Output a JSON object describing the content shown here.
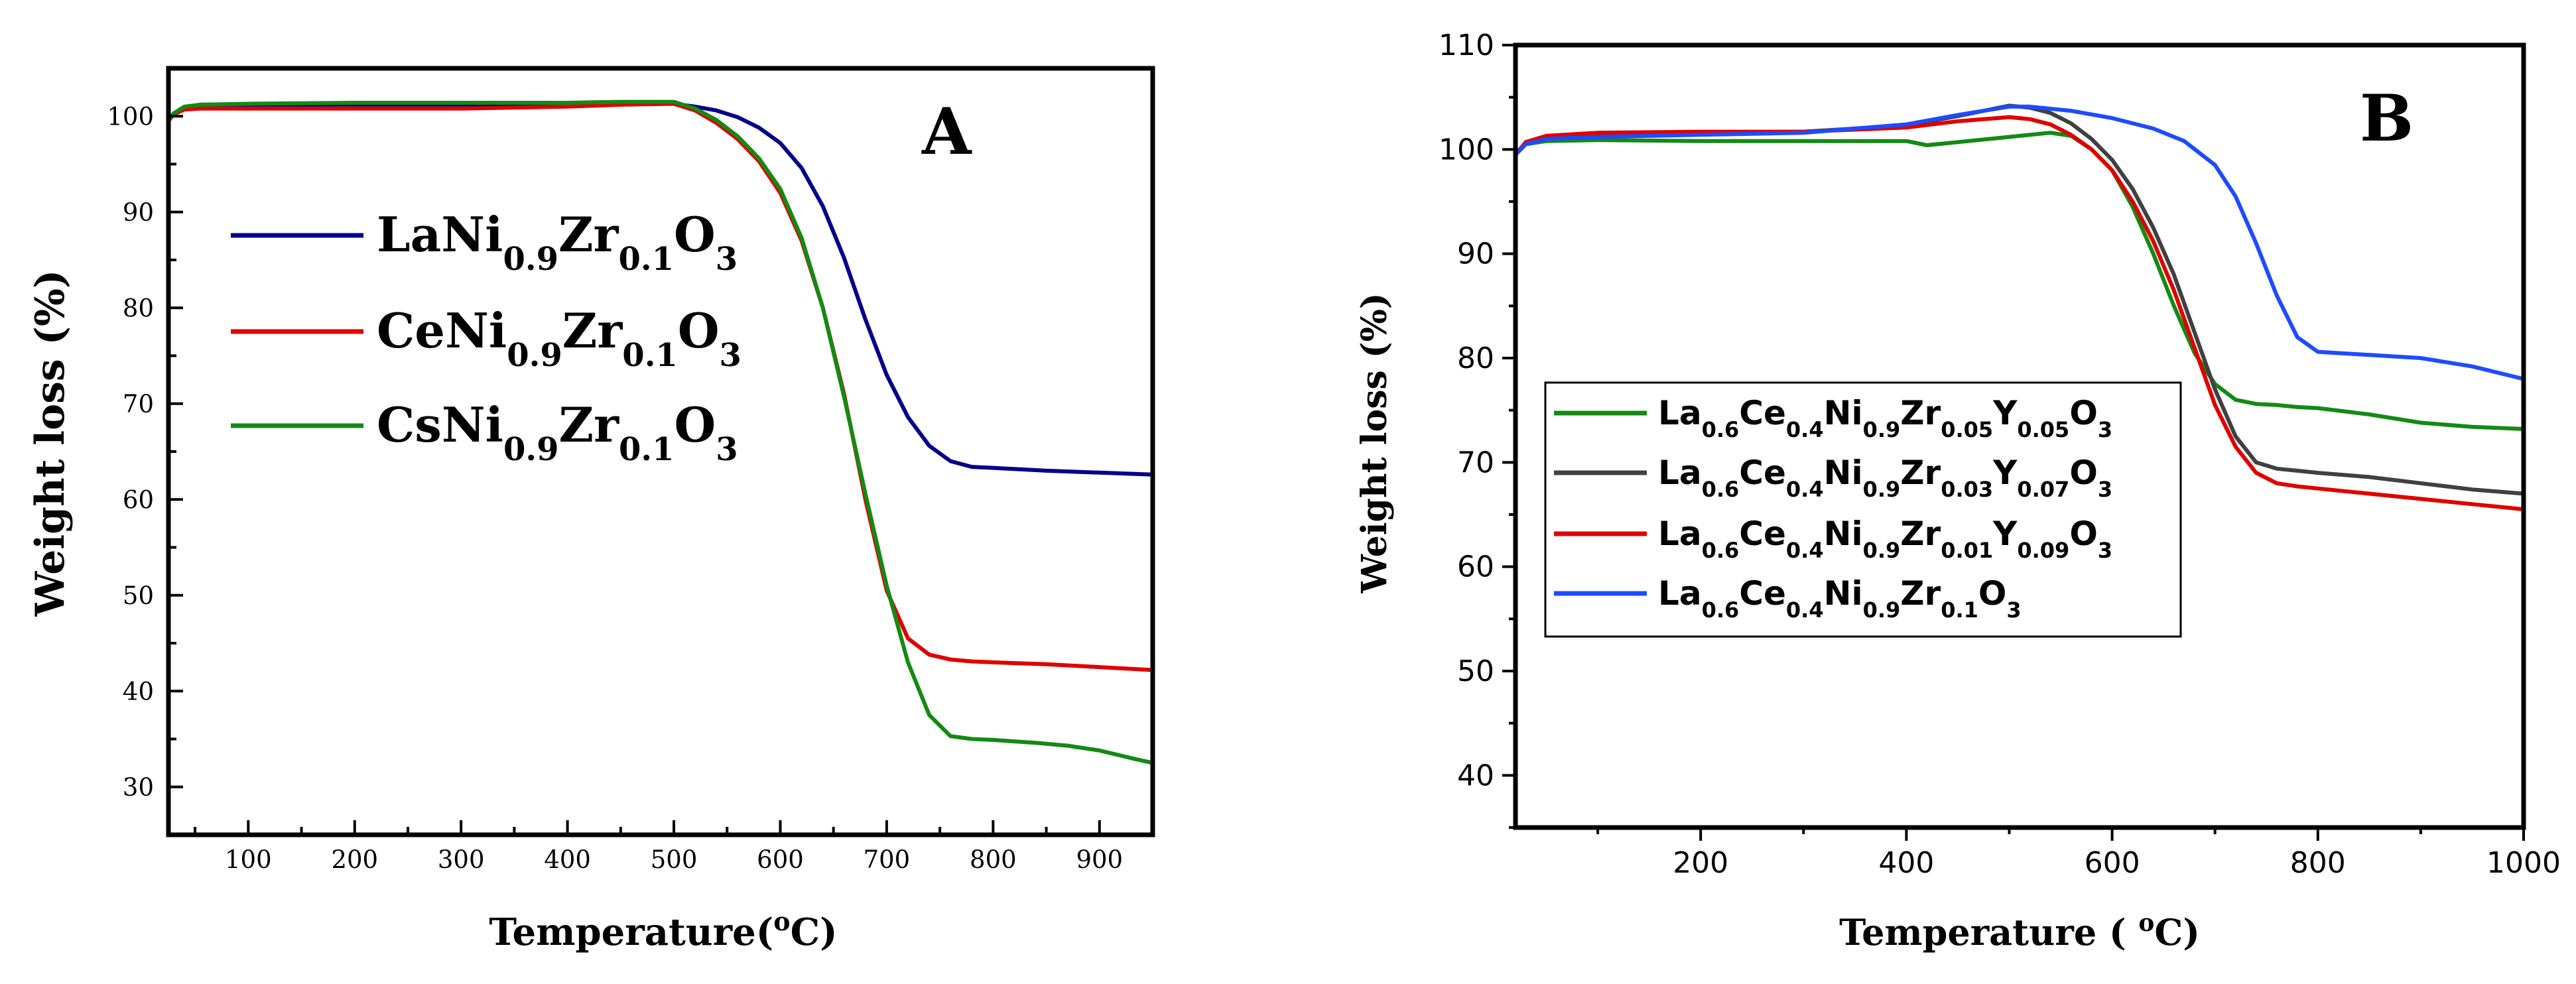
{
  "chart_data": [
    {
      "panel": "A",
      "type": "line",
      "title": "",
      "xlabel": "Temperature",
      "xlabel_unit": "(oC)",
      "ylabel": "Weight loss (%)",
      "xlim": [
        25,
        950
      ],
      "ylim": [
        25,
        105
      ],
      "xticks": [
        100,
        200,
        300,
        400,
        500,
        600,
        700,
        800,
        900
      ],
      "yticks": [
        30,
        40,
        50,
        60,
        70,
        80,
        90,
        100
      ],
      "grid": false,
      "legend_position": "upper-left",
      "series": [
        {
          "name": "LaNi0.9Zr0.1O3",
          "label_parts": [
            [
              "LaNi",
              ""
            ],
            [
              "0.9",
              "sub"
            ],
            [
              "Zr",
              ""
            ],
            [
              "0.1",
              "sub"
            ],
            [
              "O",
              ""
            ],
            [
              "3",
              "sub"
            ]
          ],
          "color": "#00008B",
          "x": [
            25,
            30,
            40,
            55,
            100,
            200,
            300,
            400,
            450,
            500,
            520,
            540,
            560,
            580,
            600,
            620,
            640,
            660,
            680,
            700,
            720,
            740,
            760,
            780,
            800,
            850,
            900,
            950
          ],
          "y": [
            99.5,
            100.3,
            100.8,
            101.2,
            101.2,
            101.2,
            101.2,
            101.2,
            101.3,
            101.3,
            101.0,
            100.6,
            99.9,
            98.8,
            97.2,
            94.6,
            90.6,
            85.2,
            78.8,
            73.0,
            68.6,
            65.6,
            64.0,
            63.4,
            63.3,
            63.0,
            62.8,
            62.6
          ]
        },
        {
          "name": "CeNi0.9Zr0.1O3",
          "label_parts": [
            [
              "CeNi",
              ""
            ],
            [
              "0.9",
              "sub"
            ],
            [
              "Zr",
              ""
            ],
            [
              "0.1",
              "sub"
            ],
            [
              "O",
              ""
            ],
            [
              "3",
              "sub"
            ]
          ],
          "color": "#E00000",
          "x": [
            25,
            30,
            40,
            55,
            100,
            200,
            300,
            400,
            450,
            500,
            520,
            540,
            560,
            580,
            600,
            620,
            640,
            660,
            680,
            700,
            720,
            740,
            760,
            780,
            800,
            850,
            900,
            950
          ],
          "y": [
            99.5,
            100.2,
            100.7,
            100.8,
            100.8,
            100.8,
            100.8,
            101.0,
            101.2,
            101.3,
            100.6,
            99.3,
            97.6,
            95.3,
            92.0,
            87.0,
            80.0,
            71.0,
            60.0,
            50.5,
            45.5,
            43.8,
            43.3,
            43.1,
            43.0,
            42.8,
            42.5,
            42.2
          ]
        },
        {
          "name": "CsNi0.9Zr0.1O3",
          "label_parts": [
            [
              "CsNi",
              ""
            ],
            [
              "0.9",
              "sub"
            ],
            [
              "Zr",
              ""
            ],
            [
              "0.1",
              "sub"
            ],
            [
              "O",
              ""
            ],
            [
              "3",
              "sub"
            ]
          ],
          "color": "#138A13",
          "x": [
            25,
            30,
            40,
            55,
            100,
            200,
            300,
            400,
            450,
            500,
            520,
            540,
            560,
            580,
            600,
            620,
            640,
            660,
            680,
            700,
            720,
            740,
            760,
            780,
            800,
            840,
            870,
            900,
            930,
            950
          ],
          "y": [
            99.5,
            100.3,
            101.0,
            101.2,
            101.3,
            101.4,
            101.4,
            101.4,
            101.5,
            101.5,
            100.8,
            99.6,
            97.9,
            95.6,
            92.4,
            87.3,
            80.0,
            70.7,
            60.6,
            51.0,
            43.0,
            37.5,
            35.3,
            35.0,
            34.9,
            34.6,
            34.3,
            33.8,
            33.0,
            32.5
          ]
        }
      ]
    },
    {
      "panel": "B",
      "type": "line",
      "title": "",
      "xlabel": "Temperature ( oC)",
      "ylabel": "Weight loss (%)",
      "xlim": [
        20,
        1000
      ],
      "ylim": [
        35,
        110
      ],
      "xticks": [
        200,
        400,
        600,
        800,
        1000
      ],
      "yticks": [
        40,
        50,
        60,
        70,
        80,
        90,
        100,
        110
      ],
      "grid": false,
      "legend_position": "lower-left",
      "series": [
        {
          "name": "La0.6Ce0.4Ni0.9Zr0.05Y0.05O3",
          "label_parts": [
            [
              "La",
              ""
            ],
            [
              "0.6",
              "sub"
            ],
            [
              "Ce",
              ""
            ],
            [
              "0.4",
              "sub"
            ],
            [
              "Ni",
              ""
            ],
            [
              "0.9",
              "sub"
            ],
            [
              "Zr",
              ""
            ],
            [
              "0.05",
              "sub"
            ],
            [
              "Y",
              ""
            ],
            [
              "0.05",
              "sub"
            ],
            [
              "O",
              ""
            ],
            [
              "3",
              "sub"
            ]
          ],
          "color": "#138A13",
          "x": [
            20,
            30,
            50,
            100,
            200,
            300,
            400,
            420,
            450,
            500,
            540,
            560,
            580,
            600,
            620,
            640,
            660,
            680,
            700,
            720,
            740,
            760,
            780,
            800,
            850,
            900,
            950,
            1000
          ],
          "y": [
            99.5,
            100.5,
            100.8,
            100.9,
            100.8,
            100.8,
            100.8,
            100.4,
            100.7,
            101.2,
            101.6,
            101.3,
            100.0,
            98.0,
            94.5,
            90.0,
            85.0,
            80.5,
            77.5,
            76.0,
            75.6,
            75.5,
            75.3,
            75.2,
            74.6,
            73.8,
            73.4,
            73.2
          ]
        },
        {
          "name": "La0.6Ce0.4Ni0.9Zr0.03Y0.07O3",
          "label_parts": [
            [
              "La",
              ""
            ],
            [
              "0.6",
              "sub"
            ],
            [
              "Ce",
              ""
            ],
            [
              "0.4",
              "sub"
            ],
            [
              "Ni",
              ""
            ],
            [
              "0.9",
              "sub"
            ],
            [
              "Zr",
              ""
            ],
            [
              "0.03",
              "sub"
            ],
            [
              "Y",
              ""
            ],
            [
              "0.07",
              "sub"
            ],
            [
              "O",
              ""
            ],
            [
              "3",
              "sub"
            ]
          ],
          "color": "#404040",
          "x": [
            20,
            30,
            50,
            100,
            200,
            300,
            400,
            450,
            500,
            520,
            540,
            560,
            580,
            600,
            620,
            640,
            660,
            680,
            700,
            720,
            740,
            760,
            780,
            800,
            850,
            900,
            950,
            1000
          ],
          "y": [
            99.5,
            100.6,
            101.2,
            101.5,
            101.6,
            101.7,
            102.3,
            103.2,
            104.2,
            104.0,
            103.5,
            102.5,
            101.0,
            99.0,
            96.2,
            92.5,
            88.0,
            82.5,
            77.0,
            72.5,
            70.0,
            69.4,
            69.2,
            69.0,
            68.6,
            68.0,
            67.4,
            67.0
          ]
        },
        {
          "name": "La0.6Ce0.4Ni0.9Zr0.01Y0.09O3",
          "label_parts": [
            [
              "La",
              ""
            ],
            [
              "0.6",
              "sub"
            ],
            [
              "Ce",
              ""
            ],
            [
              "0.4",
              "sub"
            ],
            [
              "Ni",
              ""
            ],
            [
              "0.9",
              "sub"
            ],
            [
              "Zr",
              ""
            ],
            [
              "0.01",
              "sub"
            ],
            [
              "Y",
              ""
            ],
            [
              "0.09",
              "sub"
            ],
            [
              "O",
              ""
            ],
            [
              "3",
              "sub"
            ]
          ],
          "color": "#E00000",
          "x": [
            20,
            30,
            50,
            100,
            200,
            300,
            400,
            450,
            500,
            520,
            540,
            560,
            580,
            600,
            620,
            640,
            660,
            680,
            700,
            720,
            740,
            760,
            780,
            800,
            850,
            900,
            950,
            1000
          ],
          "y": [
            99.5,
            100.7,
            101.3,
            101.6,
            101.7,
            101.7,
            102.1,
            102.7,
            103.1,
            102.9,
            102.4,
            101.4,
            100.0,
            98.0,
            95.0,
            91.2,
            86.5,
            81.0,
            75.5,
            71.5,
            69.0,
            68.0,
            67.7,
            67.5,
            67.0,
            66.5,
            66.0,
            65.5
          ]
        },
        {
          "name": "La0.6Ce0.4Ni0.9Zr0.1O3",
          "label_parts": [
            [
              "La",
              ""
            ],
            [
              "0.6",
              "sub"
            ],
            [
              "Ce",
              ""
            ],
            [
              "0.4",
              "sub"
            ],
            [
              "Ni",
              ""
            ],
            [
              "0.9",
              "sub"
            ],
            [
              "Zr",
              ""
            ],
            [
              "0.1",
              "sub"
            ],
            [
              "O",
              ""
            ],
            [
              "3",
              "sub"
            ]
          ],
          "color": "#1E4BFF",
          "x": [
            20,
            30,
            50,
            100,
            200,
            300,
            400,
            450,
            500,
            520,
            560,
            600,
            640,
            670,
            700,
            720,
            740,
            760,
            780,
            800,
            850,
            900,
            950,
            1000
          ],
          "y": [
            99.5,
            100.5,
            101.0,
            101.2,
            101.4,
            101.6,
            102.4,
            103.3,
            104.1,
            104.1,
            103.7,
            103.0,
            102.0,
            100.8,
            98.5,
            95.5,
            91.0,
            86.0,
            82.0,
            80.6,
            80.3,
            80.0,
            79.2,
            78.0
          ]
        }
      ]
    }
  ]
}
